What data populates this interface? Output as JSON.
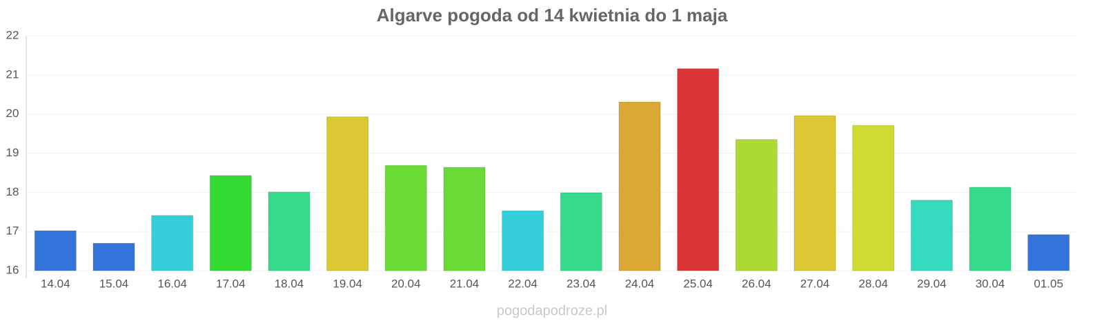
{
  "chart_data": {
    "type": "bar",
    "title": "Algarve pogoda od 14 kwietnia do 1 maja",
    "categories": [
      "14.04",
      "15.04",
      "16.04",
      "17.04",
      "18.04",
      "19.04",
      "20.04",
      "21.04",
      "22.04",
      "23.04",
      "24.04",
      "25.04",
      "26.04",
      "27.04",
      "28.04",
      "29.04",
      "30.04",
      "01.05"
    ],
    "values": [
      17.02,
      16.7,
      17.41,
      18.43,
      18.01,
      19.93,
      18.69,
      18.64,
      17.53,
      17.99,
      20.31,
      21.16,
      19.35,
      19.96,
      19.71,
      17.8,
      18.13,
      16.92
    ],
    "colors": [
      "#3375db",
      "#3375db",
      "#35cfdb",
      "#33db33",
      "#35db8a",
      "#dbc833",
      "#6adb35",
      "#6adb35",
      "#35cfdb",
      "#35db8a",
      "#dba833",
      "#db3535",
      "#addb33",
      "#dbc833",
      "#cfdb33",
      "#35dbbf",
      "#35db8a",
      "#3375db"
    ],
    "ylim": [
      16,
      22
    ],
    "yticks": [
      16,
      17,
      18,
      19,
      20,
      21,
      22
    ],
    "grid": true,
    "watermark": "pogodapodroze.pl"
  }
}
